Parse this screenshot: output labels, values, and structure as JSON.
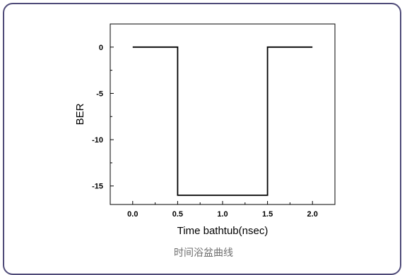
{
  "chart_data": {
    "type": "line",
    "title": "",
    "xlabel": "Time bathtub(nsec)",
    "ylabel": "BER",
    "xlim": [
      -0.25,
      2.25
    ],
    "ylim": [
      -17.0,
      2.5
    ],
    "xticks": [
      0.0,
      0.5,
      1.0,
      1.5,
      2.0
    ],
    "xtick_labels": [
      "0.0",
      "0.5",
      "1.0",
      "1.5",
      "2.0"
    ],
    "yticks": [
      0,
      -5,
      -10,
      -15
    ],
    "ytick_labels": [
      "0",
      "-5",
      "-10",
      "-15"
    ],
    "grid": false,
    "legend": "none",
    "series": [
      {
        "x": [
          0.0,
          0.5,
          0.5,
          1.5,
          1.5,
          2.0
        ],
        "y": [
          0,
          0,
          -16,
          -16,
          0,
          0
        ],
        "color": "#000000"
      }
    ]
  },
  "caption": "时间浴盆曲线",
  "colors": {
    "frame_border": "#4e4a78",
    "caption_text": "#6f6f6f"
  }
}
